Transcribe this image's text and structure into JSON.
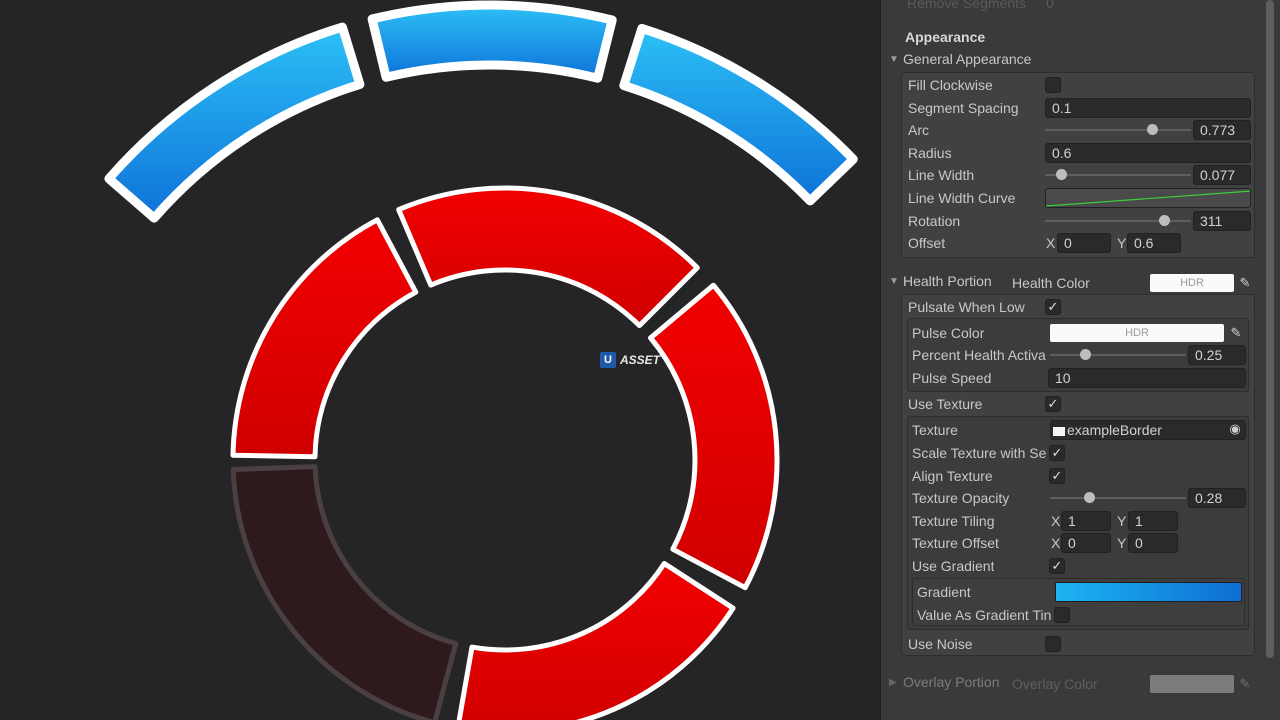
{
  "viewport": {
    "watermark": {
      "badge": "U",
      "text": "ASSET"
    },
    "colors": {
      "blue_top": "#22b2f0",
      "blue_bottom": "#1170d6",
      "red": "#ee0000",
      "dark_segment": "#2e1a1d",
      "outline": "#ffffff"
    }
  },
  "inspector": {
    "top_cut_label": "Remove Segments",
    "top_cut_value": "0",
    "section_title": "Appearance",
    "general": {
      "title": "General Appearance",
      "fill_clockwise": "Fill Clockwise",
      "segment_spacing": {
        "label": "Segment Spacing",
        "value": "0.1"
      },
      "arc": {
        "label": "Arc",
        "value": "0.773",
        "fraction": 0.773
      },
      "radius": {
        "label": "Radius",
        "value": "0.6"
      },
      "line_width": {
        "label": "Line Width",
        "value": "0.077",
        "fraction": 0.077
      },
      "line_width_curve": {
        "label": "Line Width Curve"
      },
      "rotation": {
        "label": "Rotation",
        "value": "311",
        "fraction": 0.864
      },
      "offset": {
        "label": "Offset",
        "x_label": "X",
        "x": "0",
        "y_label": "Y",
        "y": "0.6"
      }
    },
    "health": {
      "title": "Health Portion",
      "color_label": "Health Color",
      "hdr": "HDR",
      "pulsate_when_low": "Pulsate When Low",
      "pulse_color": {
        "label": "Pulse Color",
        "hdr": "HDR"
      },
      "percent_health": {
        "label": "Percent Health Activa",
        "value": "0.25",
        "fraction": 0.25
      },
      "pulse_speed": {
        "label": "Pulse Speed",
        "value": "10"
      },
      "use_texture": "Use Texture",
      "texture": {
        "label": "Texture",
        "value": "exampleBorder"
      },
      "scale_texture": "Scale Texture with Se",
      "align_texture": "Align Texture",
      "texture_opacity": {
        "label": "Texture Opacity",
        "value": "0.28",
        "fraction": 0.28
      },
      "texture_tiling": {
        "label": "Texture Tiling",
        "x_label": "X",
        "x": "1",
        "y_label": "Y",
        "y": "1"
      },
      "texture_offset": {
        "label": "Texture Offset",
        "x_label": "X",
        "x": "0",
        "y_label": "Y",
        "y": "0"
      },
      "use_gradient": "Use Gradient",
      "gradient": {
        "label": "Gradient",
        "color_start": "#1db4f2",
        "color_end": "#0e6fd4"
      },
      "value_as_gradient": "Value As Gradient Tin",
      "use_noise": "Use Noise"
    },
    "overlay": {
      "title": "Overlay Portion",
      "color_label": "Overlay Color"
    },
    "check": "✓"
  }
}
